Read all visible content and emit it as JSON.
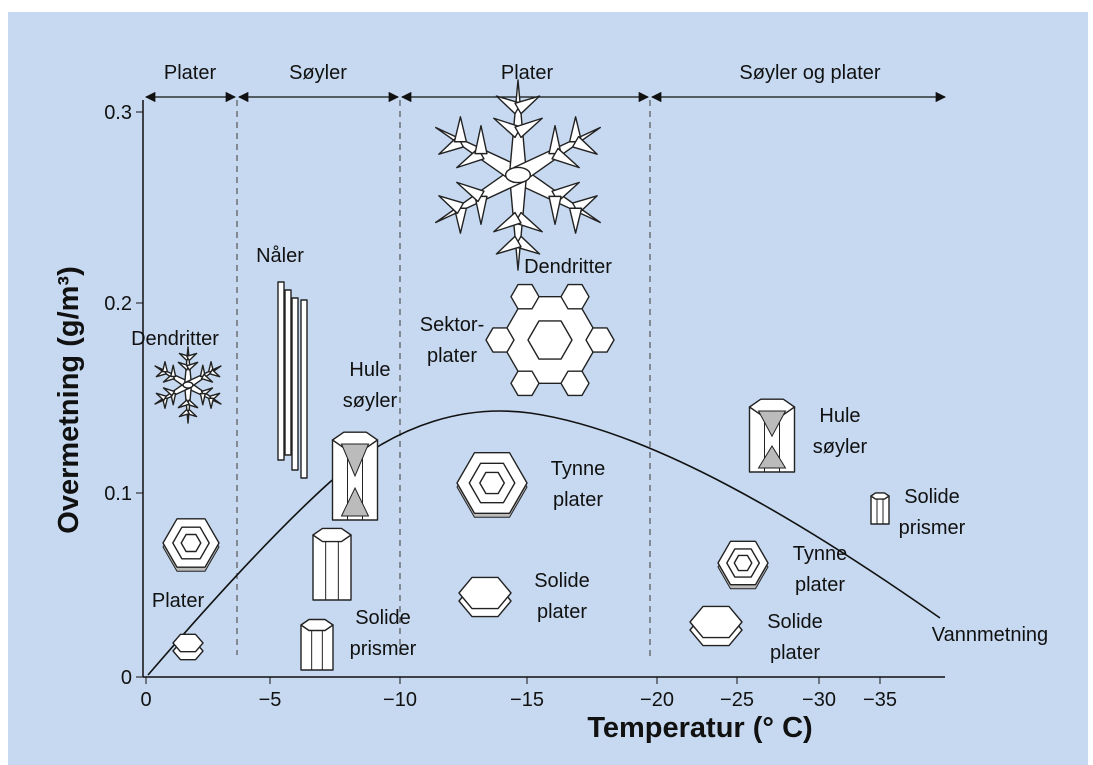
{
  "diagram": {
    "y_axis": {
      "label": "Overmetning (g/m³)",
      "ticks": [
        "0",
        "0.1",
        "0.2",
        "0.3"
      ]
    },
    "x_axis": {
      "label": "Temperatur (° C)",
      "ticks": [
        "0",
        "−5",
        "−10",
        "−15",
        "−20",
        "−25",
        "−30",
        "−35"
      ]
    },
    "regimes": [
      "Plater",
      "Søyler",
      "Plater",
      "Søyler og plater"
    ],
    "labels": [
      {
        "lines": [
          "Nåler"
        ]
      },
      {
        "lines": [
          "Dendritter"
        ]
      },
      {
        "lines": [
          "Hule",
          "søyler"
        ]
      },
      {
        "lines": [
          "Sektor-",
          "plater"
        ]
      },
      {
        "lines": [
          "Dendritter"
        ]
      },
      {
        "lines": [
          "Tynne",
          "plater"
        ]
      },
      {
        "lines": [
          "Solide",
          "plater"
        ]
      },
      {
        "lines": [
          "Plater"
        ]
      },
      {
        "lines": [
          "Solide",
          "prismer"
        ]
      },
      {
        "lines": [
          "Hule",
          "søyler"
        ]
      },
      {
        "lines": [
          "Solide",
          "prismer"
        ]
      },
      {
        "lines": [
          "Tynne",
          "plater"
        ]
      },
      {
        "lines": [
          "Solide",
          "plater"
        ]
      },
      {
        "lines": [
          "Vannmetning"
        ]
      }
    ]
  }
}
